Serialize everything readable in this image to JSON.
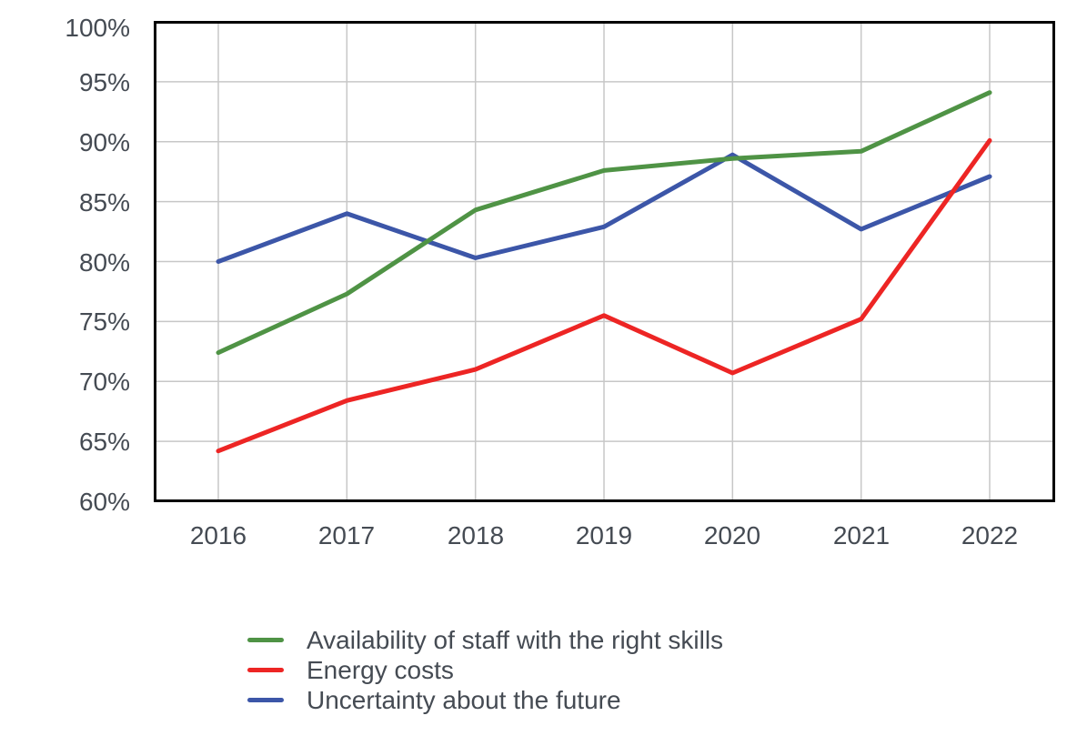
{
  "chart_data": {
    "type": "line",
    "title": "",
    "xlabel": "",
    "ylabel": "",
    "x": [
      "2016",
      "2017",
      "2018",
      "2019",
      "2020",
      "2021",
      "2022"
    ],
    "series": [
      {
        "name": "Availability of staff with the right skills",
        "color": "#4f9345",
        "z": 2,
        "values": [
          72.4,
          77.3,
          84.3,
          87.6,
          88.6,
          89.2,
          94.1
        ]
      },
      {
        "name": "Energy costs",
        "color": "#ed2524",
        "z": 3,
        "values": [
          64.2,
          68.4,
          71.0,
          75.5,
          70.7,
          75.2,
          90.1
        ]
      },
      {
        "name": "Uncertainty about the future",
        "color": "#3c56a8",
        "z": 1,
        "values": [
          80.0,
          84.0,
          80.3,
          82.9,
          88.9,
          82.7,
          87.1
        ]
      }
    ],
    "ylim": [
      60,
      100
    ],
    "y_ticks": [
      100,
      95,
      90,
      85,
      80,
      75,
      70,
      65,
      60
    ],
    "y_tick_suffix": "%",
    "grid": true,
    "legend_position": "bottom-left"
  },
  "styles": {
    "grid_color": "#c7c7c7",
    "axis_border_color": "#000000",
    "label_color": "#454b53",
    "background": "#ffffff"
  }
}
